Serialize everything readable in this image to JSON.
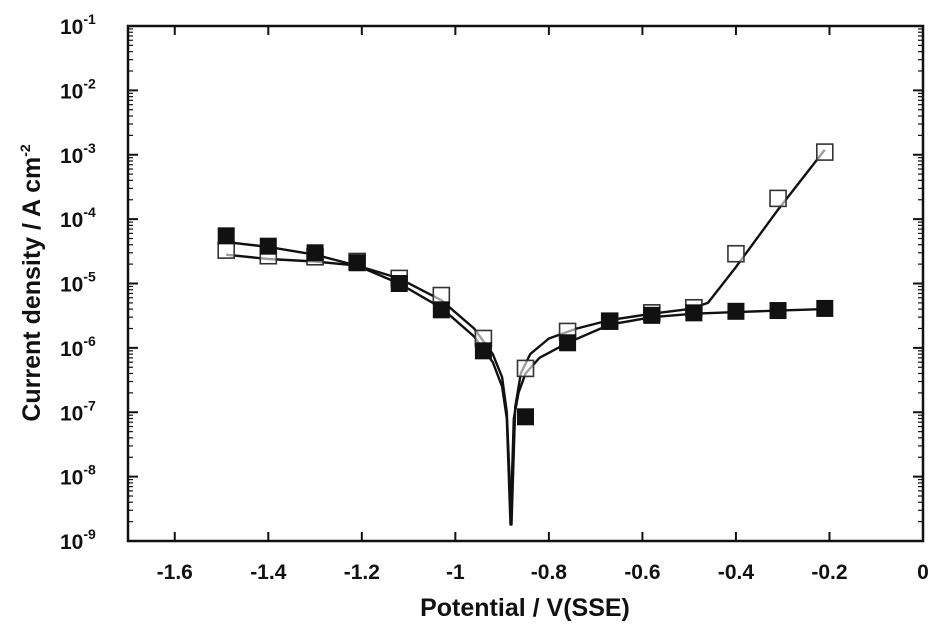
{
  "chart_data": {
    "type": "scatter",
    "title": "",
    "xlabel": "Potential / V(SSE)",
    "ylabel": {
      "main": "Current density / A cm",
      "sup": "-2"
    },
    "xlim": [
      -1.7,
      0
    ],
    "ylim_exponents": [
      -9,
      -1
    ],
    "y_scale": "log",
    "grid": false,
    "legend": "none",
    "x_ticks": [
      {
        "value": -1.6,
        "label": "-1.6"
      },
      {
        "value": -1.4,
        "label": "-1.4"
      },
      {
        "value": -1.2,
        "label": "-1.2"
      },
      {
        "value": -1.0,
        "label": "-1"
      },
      {
        "value": -0.8,
        "label": "-0.8"
      },
      {
        "value": -0.6,
        "label": "-0.6"
      },
      {
        "value": -0.4,
        "label": "-0.4"
      },
      {
        "value": -0.2,
        "label": "-0.2"
      },
      {
        "value": 0,
        "label": "0"
      }
    ],
    "y_ticks": [
      {
        "exp": -1,
        "base": "10",
        "sup": "-1"
      },
      {
        "exp": -2,
        "base": "10",
        "sup": "-2"
      },
      {
        "exp": -3,
        "base": "10",
        "sup": "-3"
      },
      {
        "exp": -4,
        "base": "10",
        "sup": "-4"
      },
      {
        "exp": -5,
        "base": "10",
        "sup": "-5"
      },
      {
        "exp": -6,
        "base": "10",
        "sup": "-6"
      },
      {
        "exp": -7,
        "base": "10",
        "sup": "-7"
      },
      {
        "exp": -8,
        "base": "10",
        "sup": "-8"
      },
      {
        "exp": -9,
        "base": "10",
        "sup": "-9"
      }
    ],
    "series": [
      {
        "marker": "filled-square",
        "color": "#111111",
        "points": [
          {
            "x": -1.49,
            "y": 5.5e-05
          },
          {
            "x": -1.4,
            "y": 3.8e-05
          },
          {
            "x": -1.3,
            "y": 3e-05
          },
          {
            "x": -1.21,
            "y": 2.1e-05
          },
          {
            "x": -1.12,
            "y": 1e-05
          },
          {
            "x": -1.03,
            "y": 3.9e-06
          },
          {
            "x": -0.94,
            "y": 9e-07
          },
          {
            "x": -0.85,
            "y": 8.5e-08
          },
          {
            "x": -0.76,
            "y": 1.2e-06
          },
          {
            "x": -0.67,
            "y": 2.6e-06
          },
          {
            "x": -0.58,
            "y": 3.2e-06
          },
          {
            "x": -0.49,
            "y": 3.5e-06
          },
          {
            "x": -0.4,
            "y": 3.7e-06
          },
          {
            "x": -0.31,
            "y": 3.8e-06
          },
          {
            "x": -0.21,
            "y": 4.1e-06
          }
        ],
        "fit": [
          {
            "x": -1.49,
            "y": 4.4e-05
          },
          {
            "x": -1.4,
            "y": 3.7e-05
          },
          {
            "x": -1.3,
            "y": 2.8e-05
          },
          {
            "x": -1.21,
            "y": 1.9e-05
          },
          {
            "x": -1.12,
            "y": 1e-05
          },
          {
            "x": -1.03,
            "y": 4.2e-06
          },
          {
            "x": -0.96,
            "y": 1.5e-06
          },
          {
            "x": -0.92,
            "y": 6e-07
          },
          {
            "x": -0.9,
            "y": 2.5e-07
          },
          {
            "x": -0.89,
            "y": 8e-08
          },
          {
            "x": -0.882,
            "y": 1.8e-09
          },
          {
            "x": -0.875,
            "y": 8e-08
          },
          {
            "x": -0.865,
            "y": 2e-07
          },
          {
            "x": -0.85,
            "y": 4e-07
          },
          {
            "x": -0.82,
            "y": 7e-07
          },
          {
            "x": -0.76,
            "y": 1.2e-06
          },
          {
            "x": -0.67,
            "y": 2.3e-06
          },
          {
            "x": -0.58,
            "y": 3e-06
          },
          {
            "x": -0.49,
            "y": 3.4e-06
          },
          {
            "x": -0.4,
            "y": 3.6e-06
          },
          {
            "x": -0.31,
            "y": 3.8e-06
          },
          {
            "x": -0.21,
            "y": 4e-06
          }
        ]
      },
      {
        "marker": "open-square",
        "color": "#333333",
        "points": [
          {
            "x": -1.49,
            "y": 3.3e-05
          },
          {
            "x": -1.4,
            "y": 2.7e-05
          },
          {
            "x": -1.3,
            "y": 2.6e-05
          },
          {
            "x": -1.21,
            "y": 2.2e-05
          },
          {
            "x": -1.12,
            "y": 1.2e-05
          },
          {
            "x": -1.03,
            "y": 6.5e-06
          },
          {
            "x": -0.94,
            "y": 1.4e-06
          },
          {
            "x": -0.85,
            "y": 4.8e-07
          },
          {
            "x": -0.76,
            "y": 1.8e-06
          },
          {
            "x": -0.67,
            "y": 2.6e-06
          },
          {
            "x": -0.58,
            "y": 3.5e-06
          },
          {
            "x": -0.49,
            "y": 4.2e-06
          },
          {
            "x": -0.4,
            "y": 2.9e-05
          },
          {
            "x": -0.31,
            "y": 0.00021
          },
          {
            "x": -0.21,
            "y": 0.0011
          }
        ],
        "fit": [
          {
            "x": -1.49,
            "y": 2.8e-05
          },
          {
            "x": -1.4,
            "y": 2.4e-05
          },
          {
            "x": -1.3,
            "y": 2.2e-05
          },
          {
            "x": -1.21,
            "y": 1.9e-05
          },
          {
            "x": -1.12,
            "y": 1.2e-05
          },
          {
            "x": -1.03,
            "y": 5.5e-06
          },
          {
            "x": -0.96,
            "y": 2e-06
          },
          {
            "x": -0.92,
            "y": 8e-07
          },
          {
            "x": -0.9,
            "y": 3.5e-07
          },
          {
            "x": -0.89,
            "y": 1e-07
          },
          {
            "x": -0.88,
            "y": 1.8e-09
          },
          {
            "x": -0.872,
            "y": 1.2e-07
          },
          {
            "x": -0.86,
            "y": 4e-07
          },
          {
            "x": -0.84,
            "y": 8e-07
          },
          {
            "x": -0.8,
            "y": 1.4e-06
          },
          {
            "x": -0.74,
            "y": 2e-06
          },
          {
            "x": -0.67,
            "y": 2.7e-06
          },
          {
            "x": -0.58,
            "y": 3.4e-06
          },
          {
            "x": -0.5,
            "y": 4e-06
          },
          {
            "x": -0.46,
            "y": 5e-06
          },
          {
            "x": -0.4,
            "y": 1.8e-05
          },
          {
            "x": -0.31,
            "y": 0.00014
          },
          {
            "x": -0.21,
            "y": 0.0012
          }
        ]
      }
    ]
  }
}
